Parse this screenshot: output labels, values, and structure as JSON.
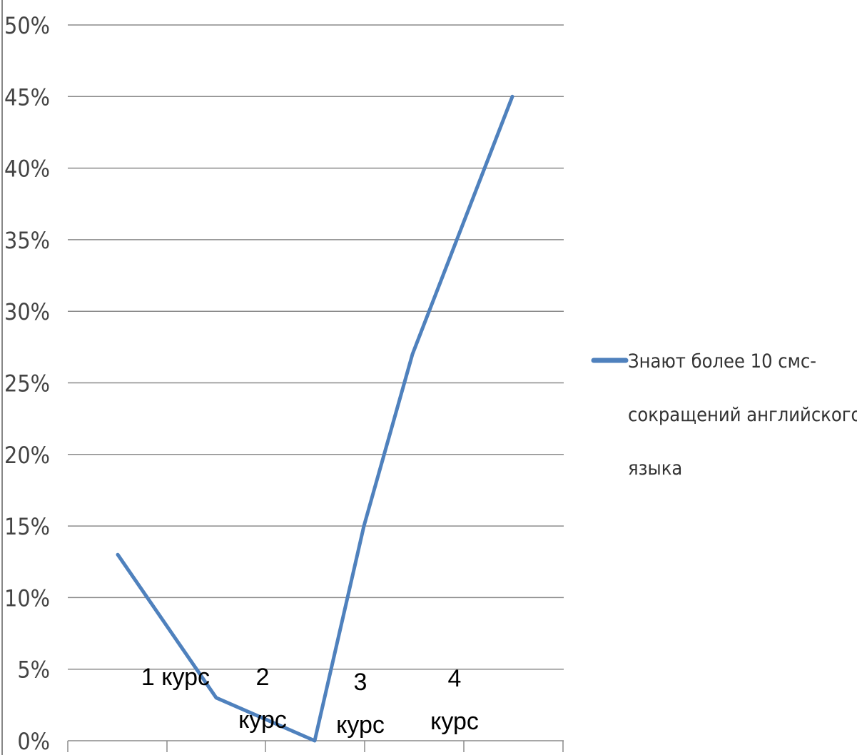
{
  "chart_data": {
    "type": "line",
    "title": "",
    "xlabel": "",
    "ylabel": "",
    "ylim": [
      0,
      0.5
    ],
    "y_ticks": [
      {
        "value": 0.0,
        "label": "0%"
      },
      {
        "value": 0.05,
        "label": "5%"
      },
      {
        "value": 0.1,
        "label": "10%"
      },
      {
        "value": 0.15,
        "label": "15%"
      },
      {
        "value": 0.2,
        "label": "20%"
      },
      {
        "value": 0.25,
        "label": "25%"
      },
      {
        "value": 0.3,
        "label": "30%"
      },
      {
        "value": 0.35,
        "label": "35%"
      },
      {
        "value": 0.4,
        "label": "40%"
      },
      {
        "value": 0.45,
        "label": "45%"
      },
      {
        "value": 0.5,
        "label": "50%"
      }
    ],
    "categories": [
      {
        "lines": [
          "1 курс"
        ]
      },
      {
        "lines": [
          "2",
          "курс"
        ]
      },
      {
        "lines": [
          "3",
          "курс"
        ]
      },
      {
        "lines": [
          "4",
          "курс"
        ]
      }
    ],
    "series": [
      {
        "name": "Знают более 10 смс-сокращений английского языка",
        "legend_lines": [
          "Знают более 10 смс-",
          "сокращений английского",
          "языка"
        ],
        "color": "#4F81BD",
        "x": [
          1,
          2,
          3,
          4,
          5,
          6
        ],
        "values": [
          0.13,
          0.03,
          0.0,
          0.15,
          0.27,
          0.45
        ]
      }
    ],
    "grid": true,
    "legend_position": "right"
  }
}
